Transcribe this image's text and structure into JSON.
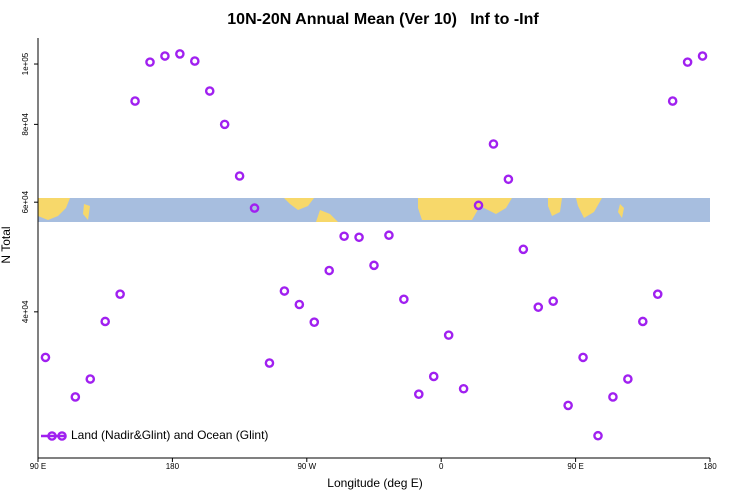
{
  "chart_data": {
    "type": "scatter",
    "title": "10N-20N Annual Mean (Ver 10)   Inf to -Inf",
    "x_label": "Longitude (deg E)",
    "y_label": "N Total",
    "log_y": true,
    "grid": false,
    "legend_position": "lower left",
    "xlim": [
      90,
      540
    ],
    "xticks": [
      {
        "value": 90,
        "label": "90 E"
      },
      {
        "value": 180,
        "label": "180"
      },
      {
        "value": 270,
        "label": "90 W"
      },
      {
        "value": 360,
        "label": "0"
      },
      {
        "value": 450,
        "label": "90 E"
      },
      {
        "value": 540,
        "label": "180"
      }
    ],
    "ylim": [
      23300,
      110100
    ],
    "yticks": [
      {
        "value": 40000,
        "label": "4e+04"
      },
      {
        "value": 60000,
        "label": "6e+04"
      },
      {
        "value": 80000,
        "label": "8e+04"
      },
      {
        "value": 100000,
        "label": "1e+05"
      }
    ],
    "series": [
      {
        "name": "Land (Nadir&Glint) and Ocean (Glint)",
        "color": "#a020f0",
        "x": [
          95,
          115,
          125,
          135,
          145,
          155,
          165,
          175,
          185,
          195,
          205,
          215,
          225,
          235,
          245,
          255,
          265,
          275,
          285,
          295,
          305,
          315,
          325,
          335,
          345,
          355,
          365,
          375,
          385,
          395,
          405,
          415,
          425,
          435,
          445,
          455,
          465,
          475,
          485,
          495,
          505,
          515,
          525,
          535
        ],
        "values": [
          33800,
          29200,
          31200,
          38600,
          42700,
          87200,
          100700,
          103000,
          103800,
          101100,
          90500,
          80000,
          66100,
          58700,
          33100,
          43200,
          41100,
          38500,
          46600,
          52900,
          52700,
          47500,
          53100,
          41900,
          29500,
          31500,
          36700,
          30100,
          59300,
          74400,
          65300,
          50400,
          40700,
          41600,
          28300,
          33800,
          25300,
          29200,
          31200,
          38600,
          42700,
          87200,
          100700,
          103000
        ]
      }
    ]
  }
}
